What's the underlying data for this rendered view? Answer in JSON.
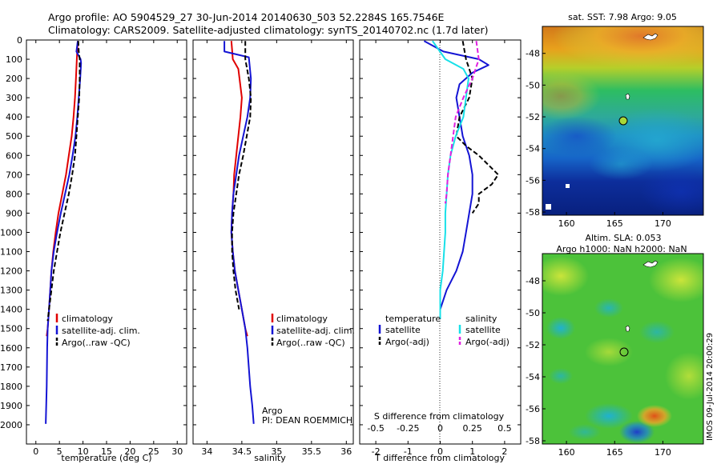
{
  "header": {
    "title_line1": "Argo profile: AO 5904529_27 30-Jun-2014 20140630_503 52.2284S 165.7546E",
    "title_line2": "Climatology: CARS2009. Satellite-adjusted climatology: synTS_20140702.nc (1.7d later)"
  },
  "sidebar_stamp": "IMOS 09-Jul-2014 20:00:29",
  "colors": {
    "climatology": "#e00000",
    "satellite": "#1414d4",
    "argo": "#000000",
    "sat_salinity": "#18e0e8",
    "argo_salinity": "#e020e0"
  },
  "chart_data": [
    {
      "type": "line",
      "id": "temperature",
      "xlabel": "temperature (deg C)",
      "xlim": [
        -2,
        32
      ],
      "xticks": [
        "0",
        "5",
        "10",
        "15",
        "20",
        "25",
        "30"
      ],
      "ylim": [
        0,
        2100
      ],
      "yticks": [
        "0",
        "100",
        "200",
        "300",
        "400",
        "500",
        "600",
        "700",
        "800",
        "900",
        "1000",
        "1100",
        "1200",
        "1300",
        "1400",
        "1500",
        "1600",
        "1700",
        "1800",
        "1900",
        "2000"
      ],
      "legend": [
        "climatology",
        "satellite-adj. clim.",
        "Argo(..raw -QC)"
      ],
      "series": [
        {
          "name": "climatology",
          "x": [
            8.9,
            8.8,
            8.7,
            8.5,
            8.3,
            8.0,
            7.6,
            7.0,
            6.4,
            5.6,
            4.8,
            4.2,
            3.7,
            3.3,
            2.8,
            2.5,
            2.3
          ],
          "y": [
            5,
            50,
            100,
            200,
            300,
            400,
            500,
            600,
            700,
            800,
            900,
            1000,
            1100,
            1200,
            1400,
            1500,
            1540
          ]
        },
        {
          "name": "satellite-adj. clim.",
          "x": [
            8.9,
            8.6,
            9.5,
            9.6,
            9.4,
            9.1,
            8.8,
            8.4,
            7.8,
            7.1,
            6.2,
            5.3,
            4.5,
            3.8,
            3.3,
            2.8,
            2.5,
            2.4,
            2.3,
            2.2,
            2.1
          ],
          "y": [
            5,
            60,
            100,
            120,
            200,
            300,
            400,
            500,
            600,
            700,
            800,
            900,
            1000,
            1100,
            1200,
            1400,
            1500,
            1600,
            1800,
            1900,
            1995
          ]
        },
        {
          "name": "Argo(..raw -QC)",
          "x": [
            9.0,
            9.1,
            9.3,
            9.3,
            9.2,
            8.9,
            8.6,
            8.3,
            7.7,
            7.0,
            6.1,
            5.2,
            4.5,
            3.8,
            3.3,
            2.8,
            2.5
          ],
          "y": [
            5,
            60,
            100,
            200,
            300,
            400,
            500,
            600,
            700,
            800,
            900,
            1000,
            1100,
            1200,
            1300,
            1400,
            1460
          ]
        }
      ]
    },
    {
      "type": "line",
      "id": "salinity",
      "xlabel": "salinity",
      "xlim": [
        33.8,
        36.1
      ],
      "xticks": [
        "34",
        "34.5",
        "35",
        "35.5",
        "36"
      ],
      "ylim": [
        0,
        2100
      ],
      "legend": [
        "climatology",
        "satellite-adj. clim.",
        "Argo(..raw -QC)"
      ],
      "annotation": {
        "line1": "Argo",
        "line2": "PI: DEAN ROEMMICH"
      },
      "series": [
        {
          "name": "climatology",
          "x": [
            34.35,
            34.36,
            34.37,
            34.45,
            34.5,
            34.48,
            34.45,
            34.42,
            34.39,
            34.38,
            34.36,
            34.35,
            34.37,
            34.4,
            34.45,
            34.5,
            34.55,
            34.58
          ],
          "y": [
            5,
            50,
            100,
            150,
            300,
            400,
            500,
            600,
            700,
            800,
            900,
            1000,
            1100,
            1200,
            1300,
            1400,
            1500,
            1540
          ]
        },
        {
          "name": "satellite-adj. clim.",
          "x": [
            34.25,
            34.25,
            34.6,
            34.63,
            34.62,
            34.58,
            34.52,
            34.46,
            34.42,
            34.38,
            34.36,
            34.35,
            34.37,
            34.4,
            34.45,
            34.5,
            34.55,
            34.58,
            34.62,
            34.65,
            34.67
          ],
          "y": [
            5,
            60,
            90,
            200,
            300,
            400,
            500,
            600,
            700,
            800,
            900,
            1000,
            1100,
            1200,
            1300,
            1400,
            1500,
            1600,
            1800,
            1900,
            1995
          ]
        },
        {
          "name": "Argo(..raw -QC)",
          "x": [
            34.55,
            34.55,
            34.6,
            34.63,
            34.62,
            34.57,
            34.52,
            34.46,
            34.42,
            34.38,
            34.36,
            34.36,
            34.38,
            34.41,
            34.46
          ],
          "y": [
            5,
            100,
            200,
            300,
            400,
            500,
            600,
            700,
            800,
            900,
            1000,
            1100,
            1200,
            1300,
            1400
          ]
        }
      ]
    },
    {
      "type": "line",
      "id": "differences",
      "xlabel": "T difference from climatology",
      "xlabel_top": "S difference from climatology",
      "xlim": [
        -2.5,
        2.5
      ],
      "xticks": [
        "-2",
        "-1",
        "0",
        "1",
        "2"
      ],
      "xticks_top": [
        "-0.5",
        "-0.25",
        "0",
        "0.25",
        "0.5"
      ],
      "ylim": [
        0,
        2100
      ],
      "legend": {
        "temperature_title": "temperature",
        "salinity_title": "salinity",
        "items": [
          [
            "satellite",
            "Argo(-adj)"
          ],
          [
            "satellite",
            "Argo(-adj)"
          ]
        ]
      },
      "series": [
        {
          "name": "satellite",
          "x": [
            -0.5,
            0.1,
            1.2,
            1.5,
            1.0,
            0.6,
            0.5,
            0.6,
            0.7,
            0.9,
            1.0,
            1.0,
            0.9,
            0.8,
            0.7,
            0.5,
            0.2,
            0.0,
            0.0
          ],
          "y": [
            5,
            60,
            100,
            130,
            170,
            230,
            300,
            400,
            500,
            600,
            700,
            800,
            900,
            1000,
            1100,
            1200,
            1300,
            1400,
            1450
          ]
        },
        {
          "name": "Argo(-adj)",
          "x": [
            0.7,
            0.8,
            1.0,
            0.9,
            0.6,
            0.5,
            0.8,
            1.2,
            1.5,
            1.8,
            1.6,
            1.2,
            1.2,
            1.0
          ],
          "y": [
            5,
            100,
            200,
            300,
            400,
            500,
            550,
            600,
            650,
            700,
            750,
            800,
            850,
            900
          ]
        },
        {
          "name": "satellite",
          "x": [
            -0.06,
            0.04,
            0.18,
            0.22,
            0.2,
            0.18,
            0.12,
            0.08,
            0.06,
            0.05,
            0.04,
            0.04,
            0.03,
            0.02,
            0.0,
            0.0
          ],
          "y": [
            5,
            100,
            150,
            200,
            300,
            400,
            500,
            600,
            700,
            800,
            900,
            1000,
            1100,
            1200,
            1300,
            1450
          ]
        },
        {
          "name": "Argo(-adj)",
          "x": [
            0.28,
            0.3,
            0.25,
            0.18,
            0.12,
            0.1,
            0.08,
            0.06,
            0.05,
            0.04
          ],
          "y": [
            5,
            100,
            200,
            300,
            400,
            500,
            600,
            700,
            800,
            850
          ]
        }
      ]
    },
    {
      "type": "heatmap",
      "id": "sst_map",
      "title": "sat. SST: 7.98 Argo: 9.05",
      "xticks": [
        "160",
        "165",
        "170"
      ],
      "yticks": [
        "-48",
        "-50",
        "-52",
        "-54",
        "-56",
        "-58"
      ],
      "xlim": [
        157.5,
        174.2
      ],
      "ylim": [
        -58.2,
        -46.3
      ]
    },
    {
      "type": "heatmap",
      "id": "sla_map",
      "title_line1": "Altim. SLA: 0.053",
      "title_line2": "Argo h1000: NaN h2000: NaN",
      "xticks": [
        "160",
        "165",
        "170"
      ],
      "yticks": [
        "-48",
        "-50",
        "-52",
        "-54",
        "-56",
        "-58"
      ],
      "xlim": [
        157.5,
        174.2
      ],
      "ylim": [
        -58.2,
        -46.3
      ]
    }
  ]
}
